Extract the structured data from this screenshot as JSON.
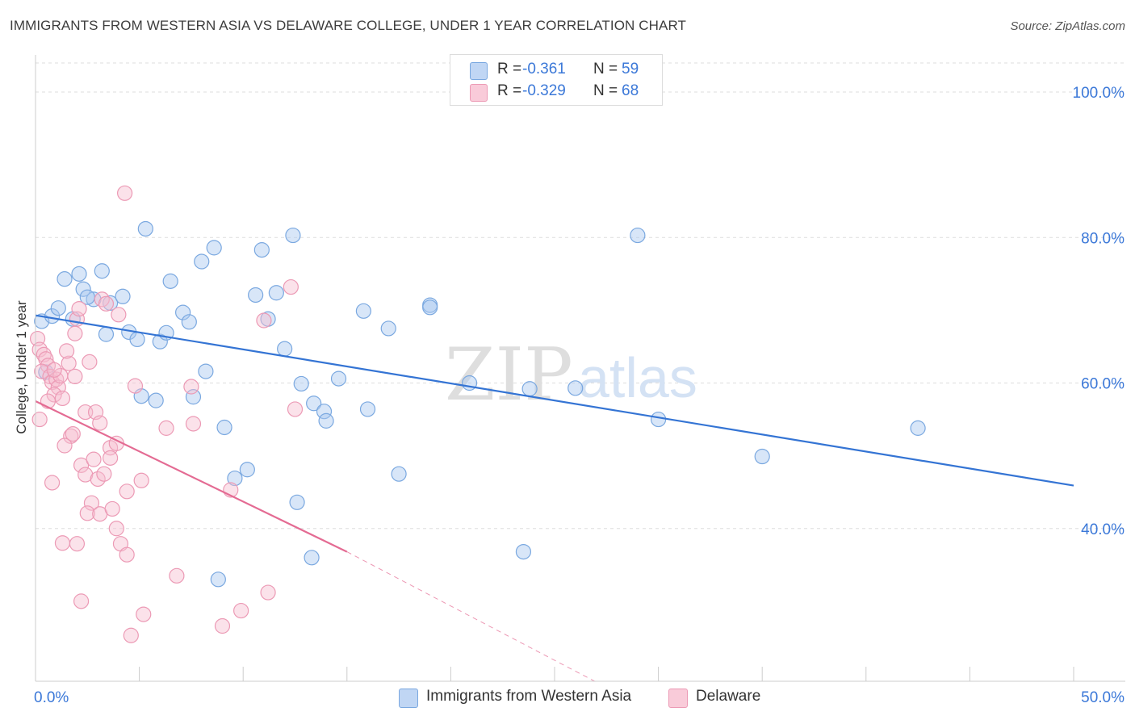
{
  "header": {
    "title": "IMMIGRANTS FROM WESTERN ASIA VS DELAWARE COLLEGE, UNDER 1 YEAR CORRELATION CHART",
    "source": "Source: ZipAtlas.com"
  },
  "watermark": {
    "zip": "ZIP",
    "atlas": "atlas"
  },
  "legend": {
    "rows": [
      {
        "r_label": "R =",
        "r_value": "-0.361",
        "n_label": "N =",
        "n_value": "59"
      },
      {
        "r_label": "R =",
        "r_value": "-0.329",
        "n_label": "N =",
        "n_value": "68"
      }
    ]
  },
  "colors": {
    "blue_fill": "#a9c8f0",
    "blue_stroke": "#7aa8e0",
    "blue_line": "#3474d4",
    "pink_fill": "#f6bfd0",
    "pink_stroke": "#ec9ab5",
    "pink_line": "#e46b93",
    "grid": "#dddddd",
    "tick_label": "#3b78d8"
  },
  "chart_data": {
    "type": "scatter",
    "title": "IMMIGRANTS FROM WESTERN ASIA VS DELAWARE COLLEGE, UNDER 1 YEAR CORRELATION CHART",
    "xlabel": "",
    "ylabel": "College, Under 1 year",
    "xlim": [
      0,
      50
    ],
    "ylim": [
      19,
      104
    ],
    "x_tick_labels": [
      "0.0%",
      "50.0%"
    ],
    "y_ticks": [
      40,
      60,
      80,
      100
    ],
    "y_tick_labels": [
      "40.0%",
      "60.0%",
      "80.0%",
      "100.0%"
    ],
    "grid": "horizontal dashed",
    "legend_position": "top-center",
    "series": [
      {
        "name": "Immigrants from Western Asia",
        "color": "#a9c8f0",
        "trend": {
          "x": [
            0,
            50
          ],
          "y": [
            69.3,
            45.9
          ],
          "style": "solid"
        },
        "points": [
          [
            0.3,
            68.5
          ],
          [
            0.8,
            69.2
          ],
          [
            1.1,
            70.3
          ],
          [
            1.8,
            68.8
          ],
          [
            1.4,
            74.3
          ],
          [
            2.1,
            75.0
          ],
          [
            2.3,
            72.9
          ],
          [
            2.8,
            71.5
          ],
          [
            2.5,
            71.8
          ],
          [
            3.2,
            75.4
          ],
          [
            3.6,
            71.0
          ],
          [
            4.2,
            71.9
          ],
          [
            3.4,
            66.7
          ],
          [
            4.5,
            67.0
          ],
          [
            4.9,
            66.0
          ],
          [
            5.3,
            81.2
          ],
          [
            6.0,
            65.7
          ],
          [
            6.5,
            74.0
          ],
          [
            7.1,
            69.7
          ],
          [
            6.3,
            66.9
          ],
          [
            7.4,
            68.4
          ],
          [
            8.0,
            76.7
          ],
          [
            8.6,
            78.6
          ],
          [
            8.2,
            61.6
          ],
          [
            10.6,
            72.1
          ],
          [
            10.9,
            78.3
          ],
          [
            11.2,
            68.8
          ],
          [
            11.6,
            72.4
          ],
          [
            12.0,
            64.7
          ],
          [
            12.4,
            80.3
          ],
          [
            12.8,
            59.9
          ],
          [
            13.4,
            57.2
          ],
          [
            13.9,
            56.1
          ],
          [
            14.0,
            54.8
          ],
          [
            14.6,
            60.6
          ],
          [
            16.0,
            56.4
          ],
          [
            15.8,
            69.9
          ],
          [
            17.0,
            67.5
          ],
          [
            19.0,
            70.7
          ],
          [
            19.0,
            70.4
          ],
          [
            20.9,
            60.0
          ],
          [
            23.8,
            59.2
          ],
          [
            26.0,
            59.3
          ],
          [
            29.0,
            80.3
          ],
          [
            30.0,
            55.0
          ],
          [
            5.1,
            58.2
          ],
          [
            5.8,
            57.6
          ],
          [
            7.6,
            58.1
          ],
          [
            9.1,
            53.9
          ],
          [
            9.6,
            46.9
          ],
          [
            10.2,
            48.1
          ],
          [
            12.6,
            43.6
          ],
          [
            17.5,
            47.5
          ],
          [
            13.3,
            36.0
          ],
          [
            8.8,
            33.0
          ],
          [
            23.5,
            36.8
          ],
          [
            35.0,
            49.9
          ],
          [
            42.5,
            53.8
          ],
          [
            0.5,
            61.5
          ]
        ]
      },
      {
        "name": "Delaware",
        "color": "#f6bfd0",
        "trend": {
          "x": [
            0,
            15
          ],
          "y": [
            57.5,
            36.8
          ],
          "style": "solid"
        },
        "trend_extension": {
          "x": [
            15,
            27
          ],
          "y": [
            36.8,
            18.9
          ],
          "style": "dashed"
        },
        "points": [
          [
            0.1,
            66.1
          ],
          [
            0.2,
            64.6
          ],
          [
            0.4,
            63.9
          ],
          [
            0.5,
            63.3
          ],
          [
            0.6,
            62.4
          ],
          [
            0.3,
            61.6
          ],
          [
            0.7,
            60.9
          ],
          [
            0.8,
            60.1
          ],
          [
            1.0,
            60.5
          ],
          [
            1.1,
            59.4
          ],
          [
            0.9,
            58.4
          ],
          [
            1.3,
            57.9
          ],
          [
            1.2,
            61.0
          ],
          [
            1.6,
            62.7
          ],
          [
            1.9,
            66.8
          ],
          [
            2.0,
            68.8
          ],
          [
            2.1,
            70.2
          ],
          [
            2.6,
            62.9
          ],
          [
            3.2,
            71.5
          ],
          [
            3.4,
            70.9
          ],
          [
            4.0,
            69.4
          ],
          [
            2.4,
            56.0
          ],
          [
            2.9,
            56.0
          ],
          [
            3.1,
            54.5
          ],
          [
            3.6,
            51.1
          ],
          [
            1.7,
            52.7
          ],
          [
            1.4,
            51.4
          ],
          [
            1.8,
            53.0
          ],
          [
            2.2,
            48.7
          ],
          [
            2.4,
            47.4
          ],
          [
            3.0,
            46.8
          ],
          [
            3.6,
            49.7
          ],
          [
            3.9,
            51.7
          ],
          [
            4.4,
            45.1
          ],
          [
            2.7,
            43.5
          ],
          [
            2.5,
            42.1
          ],
          [
            3.1,
            42.0
          ],
          [
            3.7,
            42.7
          ],
          [
            3.9,
            40.0
          ],
          [
            4.1,
            37.9
          ],
          [
            4.4,
            36.4
          ],
          [
            2.0,
            37.9
          ],
          [
            2.2,
            30.0
          ],
          [
            4.6,
            25.3
          ],
          [
            5.2,
            28.2
          ],
          [
            6.3,
            53.8
          ],
          [
            7.5,
            59.5
          ],
          [
            7.6,
            54.4
          ],
          [
            4.8,
            59.6
          ],
          [
            5.1,
            46.6
          ],
          [
            9.0,
            26.6
          ],
          [
            9.9,
            28.7
          ],
          [
            9.4,
            45.3
          ],
          [
            11.2,
            31.2
          ],
          [
            11.0,
            68.6
          ],
          [
            12.3,
            73.2
          ],
          [
            12.5,
            56.4
          ],
          [
            0.2,
            55.0
          ],
          [
            0.8,
            46.3
          ],
          [
            1.3,
            38.0
          ],
          [
            1.9,
            60.9
          ],
          [
            2.8,
            49.5
          ],
          [
            3.3,
            47.5
          ],
          [
            6.8,
            33.5
          ],
          [
            4.3,
            86.1
          ],
          [
            1.5,
            64.4
          ],
          [
            0.6,
            57.5
          ],
          [
            0.9,
            61.8
          ]
        ]
      }
    ]
  },
  "bottom_legend": [
    {
      "label": "Immigrants from Western Asia"
    },
    {
      "label": "Delaware"
    }
  ]
}
